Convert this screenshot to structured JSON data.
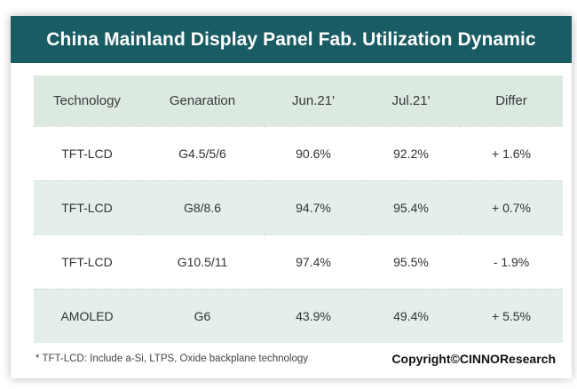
{
  "title": "China Mainland Display Panel Fab. Utilization Dynamic",
  "colors": {
    "title_bg": "#1a5c63",
    "header_row_bg": "#dbe9e1",
    "shaded_row_bg": "#e3efe8"
  },
  "table": {
    "headers": [
      "Technology",
      "Genaration",
      "Jun.21'",
      "Jul.21'",
      "Differ"
    ],
    "rows": [
      [
        "TFT-LCD",
        "G4.5/5/6",
        "90.6%",
        "92.2%",
        "+ 1.6%"
      ],
      [
        "TFT-LCD",
        "G8/8.6",
        "94.7%",
        "95.4%",
        "+ 0.7%"
      ],
      [
        "TFT-LCD",
        "G10.5/11",
        "97.4%",
        "95.5%",
        "- 1.9%"
      ],
      [
        "AMOLED",
        "G6",
        "43.9%",
        "49.4%",
        "+ 5.5%"
      ]
    ]
  },
  "footnote": "* TFT-LCD: Include a-Si, LTPS, Oxide backplane technology",
  "copyright": "Copyright©CINNOResearch"
}
